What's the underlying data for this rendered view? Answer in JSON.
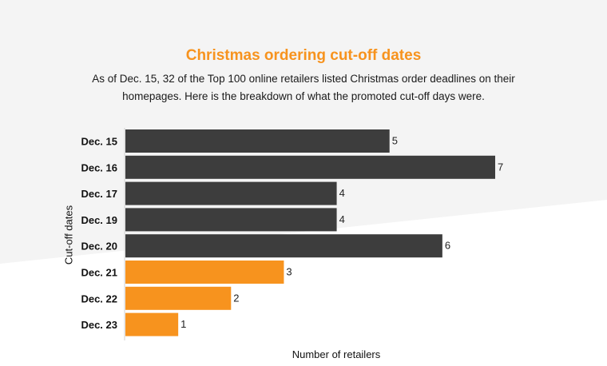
{
  "colors": {
    "background": "#f4f4f4",
    "accent": "#f7931e",
    "bar_dark": "#3d3d3d"
  },
  "chart_data": {
    "type": "bar",
    "orientation": "horizontal",
    "title": "Christmas ordering cut-off dates",
    "subtitle": "As of Dec. 15, 32 of the Top 100 online retailers listed Christmas order deadlines on their homepages. Here is the breakdown of what the promoted cut-off days were.",
    "xlabel": "Number of retailers",
    "ylabel": "Cut-off dates",
    "categories": [
      "Dec. 15",
      "Dec. 16",
      "Dec. 17",
      "Dec. 19",
      "Dec. 20",
      "Dec. 21",
      "Dec. 22",
      "Dec. 23"
    ],
    "values": [
      5,
      7,
      4,
      4,
      6,
      3,
      2,
      1
    ],
    "bar_colors": [
      "#3d3d3d",
      "#3d3d3d",
      "#3d3d3d",
      "#3d3d3d",
      "#3d3d3d",
      "#f7931e",
      "#f7931e",
      "#f7931e"
    ],
    "xlim": [
      0,
      7
    ],
    "grid": false,
    "data_labels": true
  }
}
